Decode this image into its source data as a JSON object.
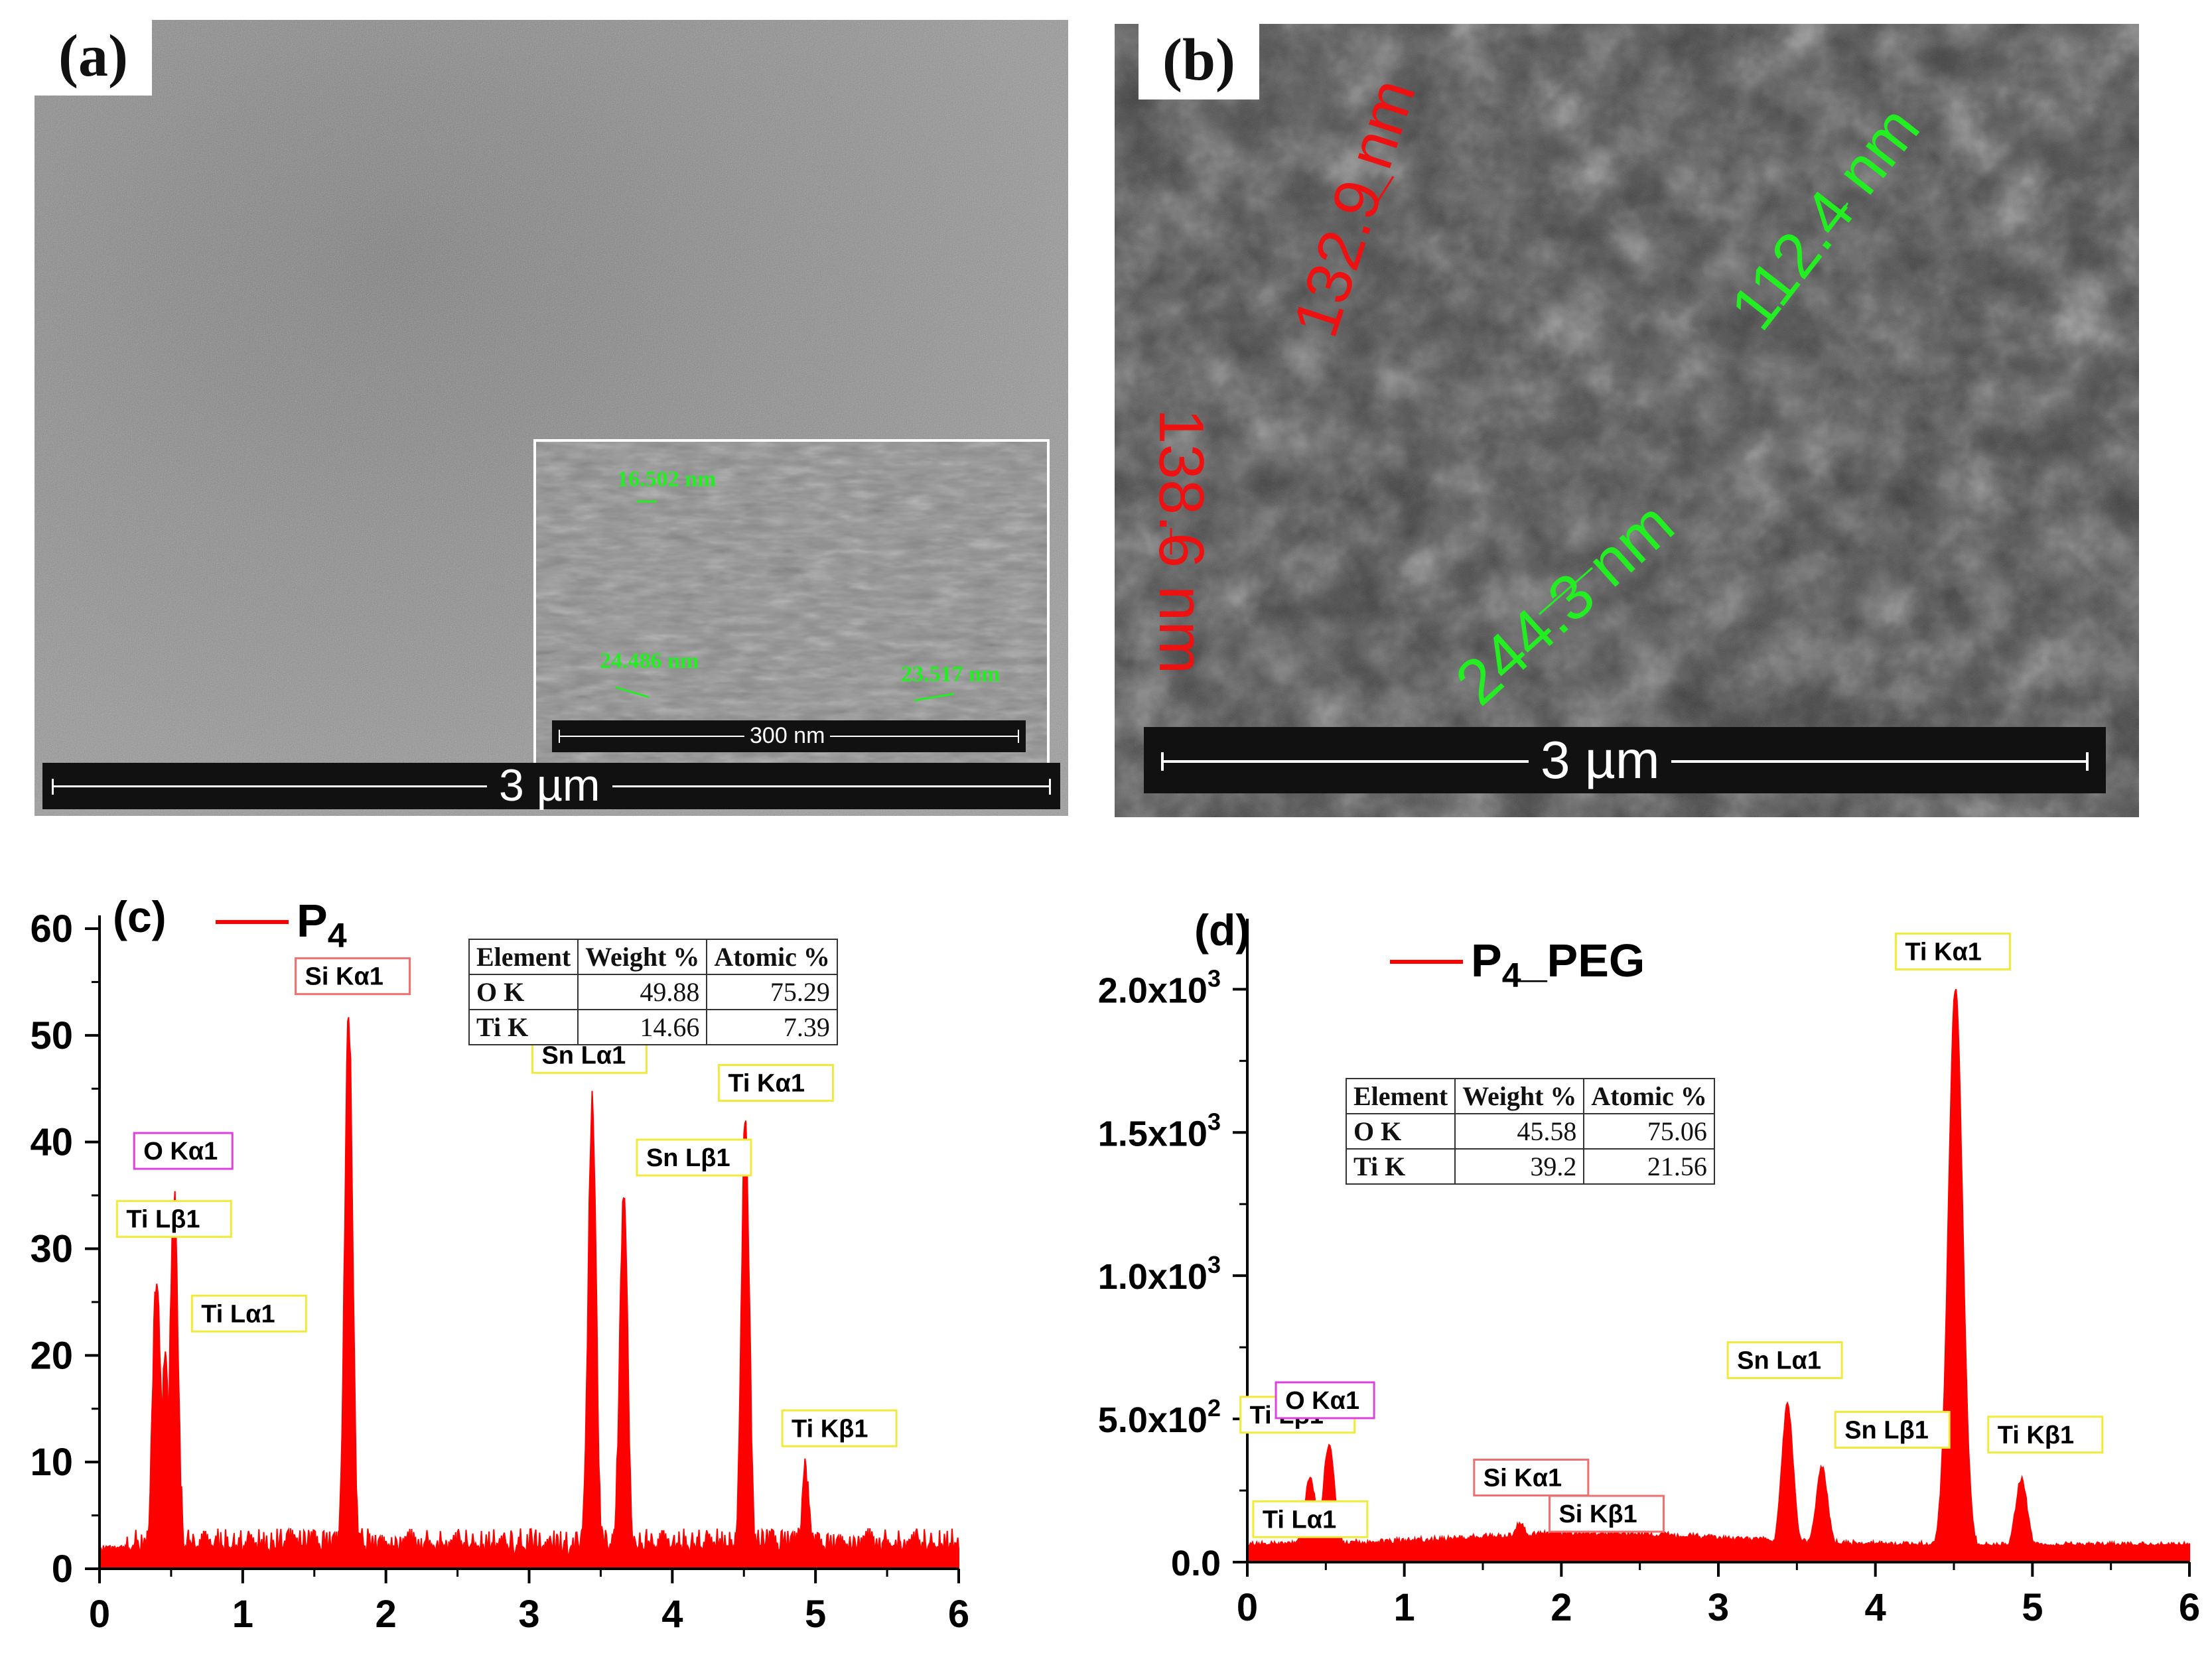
{
  "panels": {
    "a": {
      "label": "(a)",
      "scalebar": "3 µm",
      "inset": {
        "scalebar": "300 nm",
        "measurements": [
          "16.502 nm",
          "24.486 nm",
          "23.517 nm"
        ]
      }
    },
    "b": {
      "label": "(b)",
      "scalebar": "3 µm",
      "measurements": [
        {
          "text": "132.9 nm",
          "color": "#ee1111"
        },
        {
          "text": "112.4 nm",
          "color": "#22ee22"
        },
        {
          "text": "138.6 nm",
          "color": "#ee1111"
        },
        {
          "text": "244.3 nm",
          "color": "#22ee22"
        }
      ]
    }
  },
  "chart_data": [
    {
      "type": "area",
      "panel_label": "(c)",
      "legend": "P4",
      "series_color": "#ff0000",
      "xlim": [
        0,
        6
      ],
      "ylim": [
        0,
        60
      ],
      "xticks": [
        "0",
        "1",
        "2",
        "3",
        "4",
        "5",
        "6"
      ],
      "yticks": [
        "0",
        "10",
        "20",
        "30",
        "40",
        "50",
        "60"
      ],
      "peaks": [
        {
          "x": 0.4,
          "y": 28,
          "label": "Ti Lβ1",
          "box_color": "#f2ea3a"
        },
        {
          "x": 0.52,
          "y": 35,
          "label": "O Kα1",
          "box_color": "#e040e0"
        },
        {
          "x": 0.46,
          "y": 21,
          "label": "Ti Lα1",
          "box_color": "#f2ea3a"
        },
        {
          "x": 1.74,
          "y": 52,
          "label": "Si Kα1",
          "box_color": "#f07070"
        },
        {
          "x": 3.44,
          "y": 44,
          "label": "Sn Lα1",
          "box_color": "#f2ea3a"
        },
        {
          "x": 3.66,
          "y": 35,
          "label": "Sn Lβ1",
          "box_color": "#f2ea3a"
        },
        {
          "x": 4.51,
          "y": 42,
          "label": "Ti Kα1",
          "box_color": "#f2ea3a"
        },
        {
          "x": 4.93,
          "y": 9,
          "label": "Ti Kβ1",
          "box_color": "#f2ea3a"
        }
      ],
      "table": {
        "headers": [
          "Element",
          "Weight %",
          "Atomic %"
        ],
        "rows": [
          [
            "O  K",
            "49.88",
            "75.29"
          ],
          [
            "Ti K",
            "14.66",
            "7.39"
          ]
        ]
      }
    },
    {
      "type": "area",
      "panel_label": "(d)",
      "legend": "P4_PEG",
      "series_color": "#ff0000",
      "xlim": [
        0,
        6
      ],
      "ylim": [
        0,
        2200
      ],
      "xticks": [
        "0",
        "1",
        "2",
        "3",
        "4",
        "5",
        "6"
      ],
      "yticks": [
        {
          "v": 0,
          "base": "0.0",
          "exp": ""
        },
        {
          "v": 500,
          "base": "5.0x10",
          "exp": "2"
        },
        {
          "v": 1000,
          "base": "1.0x10",
          "exp": "3"
        },
        {
          "v": 1500,
          "base": "1.5x10",
          "exp": "3"
        },
        {
          "v": 2000,
          "base": "2.0x10",
          "exp": "3"
        }
      ],
      "peaks": [
        {
          "x": 0.4,
          "y": 290,
          "label": "Ti Lβ1",
          "box_color": "#f2ea3a"
        },
        {
          "x": 0.52,
          "y": 410,
          "label": "O Kα1",
          "box_color": "#e040e0"
        },
        {
          "x": 0.46,
          "y": 180,
          "label": "Ti Lα1",
          "box_color": "#f2ea3a"
        },
        {
          "x": 1.74,
          "y": 140,
          "label": "Si Kα1",
          "box_color": "#f07070"
        },
        {
          "x": 1.84,
          "y": 60,
          "label": "Si Kβ1",
          "box_color": "#f07070"
        },
        {
          "x": 3.44,
          "y": 550,
          "label": "Sn Lα1",
          "box_color": "#f2ea3a"
        },
        {
          "x": 3.66,
          "y": 330,
          "label": "Sn Lβ1",
          "box_color": "#f2ea3a"
        },
        {
          "x": 4.51,
          "y": 2000,
          "label": "Ti Kα1",
          "box_color": "#f2ea3a"
        },
        {
          "x": 4.93,
          "y": 290,
          "label": "Ti Kβ1",
          "box_color": "#f2ea3a"
        }
      ],
      "table": {
        "headers": [
          "Element",
          "Weight %",
          "Atomic %"
        ],
        "rows": [
          [
            "O  K",
            "45.58",
            "75.06"
          ],
          [
            "Ti K",
            "39.2",
            "21.56"
          ]
        ]
      }
    }
  ]
}
